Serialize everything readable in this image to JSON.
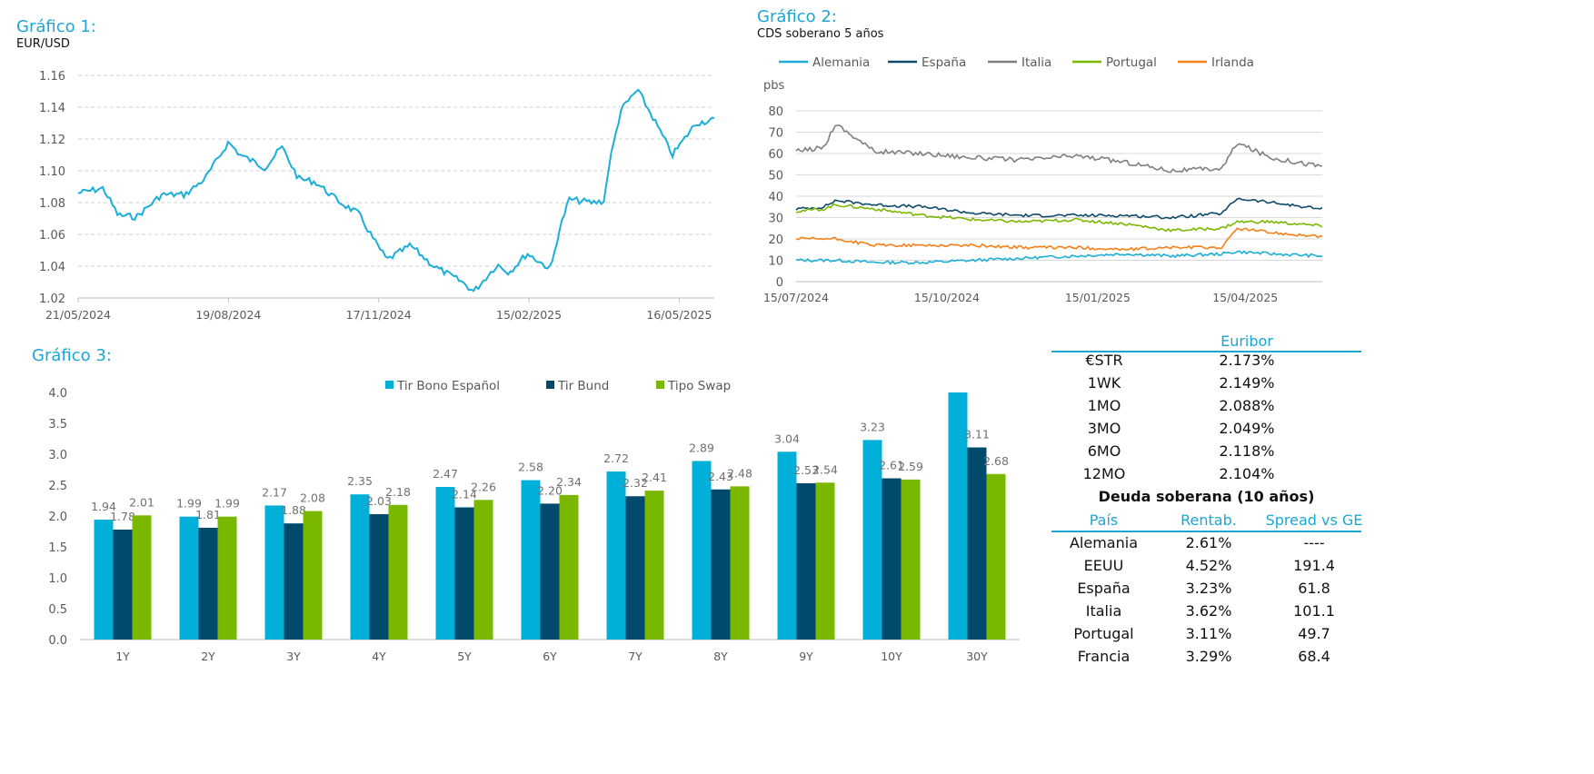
{
  "chart_data": [
    {
      "type": "line",
      "title": "Gráfico 1:",
      "subtitle": "EUR/USD",
      "ylim": [
        1.02,
        1.16
      ],
      "yticks": [
        "1.02",
        "1.04",
        "1.06",
        "1.08",
        "1.10",
        "1.12",
        "1.14",
        "1.16"
      ],
      "xticks": [
        "21/05/2024",
        "19/08/2024",
        "17/11/2024",
        "15/02/2025",
        "16/05/2025"
      ],
      "grid": true,
      "color": "#1aaed8",
      "x": [
        "2024-05-21",
        "2024-06-05",
        "2024-06-14",
        "2024-06-25",
        "2024-07-10",
        "2024-07-24",
        "2024-08-05",
        "2024-08-19",
        "2024-08-26",
        "2024-09-10",
        "2024-09-20",
        "2024-09-30",
        "2024-10-10",
        "2024-10-25",
        "2024-11-05",
        "2024-11-15",
        "2024-11-22",
        "2024-12-06",
        "2024-12-20",
        "2025-01-06",
        "2025-01-13",
        "2025-01-27",
        "2025-02-03",
        "2025-02-14",
        "2025-02-28",
        "2025-03-05",
        "2025-03-11",
        "2025-03-25",
        "2025-04-01",
        "2025-04-04",
        "2025-04-11",
        "2025-04-21",
        "2025-05-01",
        "2025-05-12",
        "2025-05-26",
        "2025-06-06"
      ],
      "values": [
        1.086,
        1.089,
        1.072,
        1.071,
        1.085,
        1.085,
        1.095,
        1.118,
        1.11,
        1.102,
        1.115,
        1.095,
        1.093,
        1.08,
        1.073,
        1.055,
        1.044,
        1.053,
        1.04,
        1.03,
        1.024,
        1.041,
        1.036,
        1.048,
        1.038,
        1.062,
        1.082,
        1.08,
        1.081,
        1.104,
        1.138,
        1.151,
        1.132,
        1.11,
        1.13,
        1.132
      ]
    },
    {
      "type": "line",
      "title": "Gráfico 2:",
      "subtitle": "CDS soberano 5 años",
      "ylabel": "pbs",
      "ylim": [
        0,
        80
      ],
      "yticks": [
        "0",
        "10",
        "20",
        "30",
        "40",
        "50",
        "60",
        "70",
        "80"
      ],
      "xticks": [
        "15/07/2024",
        "15/10/2024",
        "15/01/2025",
        "15/04/2025"
      ],
      "legend_position": "top",
      "grid": true,
      "x": [
        "2024-07-15",
        "2024-08-01",
        "2024-08-08",
        "2024-09-01",
        "2024-10-01",
        "2024-11-01",
        "2024-12-01",
        "2025-01-01",
        "2025-02-01",
        "2025-03-01",
        "2025-04-01",
        "2025-04-10",
        "2025-05-01",
        "2025-06-01"
      ],
      "series": [
        {
          "name": "Alemania",
          "color": "#1aaed8",
          "values": [
            10,
            10,
            10,
            9,
            9,
            10,
            11,
            12,
            13,
            12,
            13,
            14,
            13,
            12
          ]
        },
        {
          "name": "España",
          "color": "#0d4a6b",
          "values": [
            34,
            35,
            38,
            36,
            35,
            32,
            31,
            31,
            31,
            30,
            32,
            39,
            37,
            34
          ]
        },
        {
          "name": "Italia",
          "color": "#7f7f7f",
          "values": [
            61,
            63,
            74,
            61,
            60,
            58,
            57,
            59,
            56,
            52,
            53,
            65,
            58,
            54
          ]
        },
        {
          "name": "Portugal",
          "color": "#7ab800",
          "values": [
            33,
            34,
            36,
            34,
            31,
            29,
            28,
            29,
            27,
            24,
            25,
            28,
            28,
            26
          ]
        },
        {
          "name": "Irlanda",
          "color": "#f57f17",
          "values": [
            20,
            20,
            20,
            17,
            17,
            17,
            16,
            16,
            15,
            16,
            16,
            25,
            23,
            21
          ]
        }
      ]
    },
    {
      "type": "bar",
      "title": "Gráfico 3:",
      "categories": [
        "1Y",
        "2Y",
        "3Y",
        "4Y",
        "5Y",
        "6Y",
        "7Y",
        "8Y",
        "9Y",
        "10Y",
        "30Y"
      ],
      "ylim": [
        0,
        4.0
      ],
      "yticks": [
        "0.0",
        "0.5",
        "1.0",
        "1.5",
        "2.0",
        "2.5",
        "3.0",
        "3.5",
        "4.0"
      ],
      "legend_position": "top",
      "series": [
        {
          "name": "Tir Bono Español",
          "color": "#00b0d9",
          "values": [
            1.94,
            1.99,
            2.17,
            2.35,
            2.47,
            2.58,
            2.72,
            2.89,
            3.04,
            3.23,
            4.0
          ],
          "labels": [
            "1.94",
            "1.99",
            "2.17",
            "2.35",
            "2.47",
            "2.58",
            "2.72",
            "2.89",
            "3.04",
            "3.23",
            ""
          ]
        },
        {
          "name": "Tir Bund",
          "color": "#004b6b",
          "values": [
            1.78,
            1.81,
            1.88,
            2.03,
            2.14,
            2.2,
            2.32,
            2.43,
            2.53,
            2.61,
            3.11
          ],
          "labels": [
            "1.78",
            "1.81",
            "1.88",
            "2.03",
            "2.14",
            "2.20",
            "2.32",
            "2.43",
            "2.53",
            "2.61",
            "3.11"
          ]
        },
        {
          "name": "Tipo Swap",
          "color": "#7ab800",
          "values": [
            2.01,
            1.99,
            2.08,
            2.18,
            2.26,
            2.34,
            2.41,
            2.48,
            2.54,
            2.59,
            2.68
          ],
          "labels": [
            "2.01",
            "1.99",
            "2.08",
            "2.18",
            "2.26",
            "2.34",
            "2.41",
            "2.48",
            "2.54",
            "2.59",
            "2.68"
          ]
        }
      ]
    }
  ],
  "euribor": {
    "header": "Euribor",
    "rows": [
      {
        "label": "€STR",
        "value": "2.173%"
      },
      {
        "label": "1WK",
        "value": "2.149%"
      },
      {
        "label": "1MO",
        "value": "2.088%"
      },
      {
        "label": "3MO",
        "value": "2.049%"
      },
      {
        "label": "6MO",
        "value": "2.118%"
      },
      {
        "label": "12MO",
        "value": "2.104%"
      }
    ]
  },
  "deuda": {
    "title": "Deuda soberana (10 años)",
    "headers": [
      "País",
      "Rentab.",
      "Spread vs GE"
    ],
    "rows": [
      [
        "Alemania",
        "2.61%",
        "----"
      ],
      [
        "EEUU",
        "4.52%",
        "191.4"
      ],
      [
        "España",
        "3.23%",
        "61.8"
      ],
      [
        "Italia",
        "3.62%",
        "101.1"
      ],
      [
        "Portugal",
        "3.11%",
        "49.7"
      ],
      [
        "Francia",
        "3.29%",
        "68.4"
      ]
    ]
  }
}
